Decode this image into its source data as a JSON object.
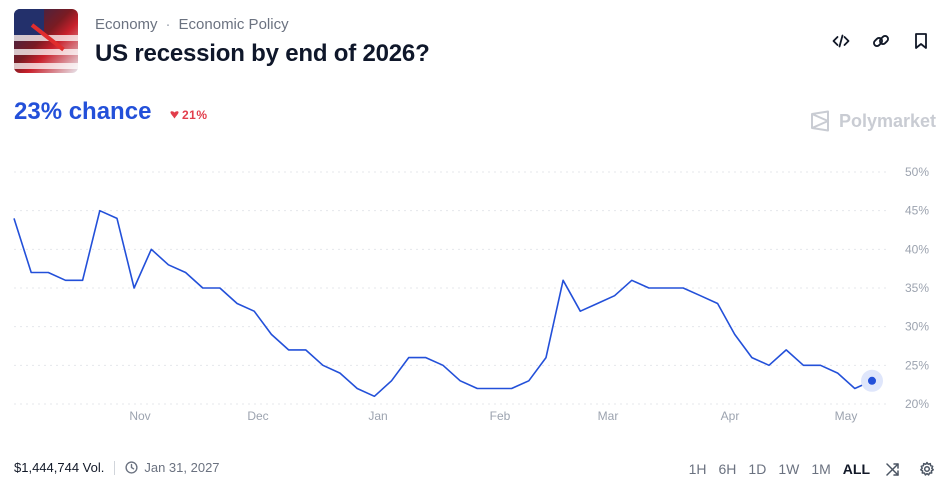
{
  "breadcrumb": {
    "category": "Economy",
    "separator": "·",
    "subcategory": "Economic Policy"
  },
  "title": "US recession by end of 2026?",
  "odds": {
    "chance": "23% chance",
    "change": "21%",
    "change_direction": "down",
    "accent": "#2350d9",
    "down_color": "#e23d4b"
  },
  "brand": "Polymarket",
  "icons": {
    "embed": "code-icon",
    "link": "link-icon",
    "bookmark": "bookmark-icon",
    "clock": "clock-icon",
    "shuffle": "shuffle-icon",
    "settings": "gear-icon",
    "brand": "polymarket-logo-icon"
  },
  "footer": {
    "volume": "$1,444,744 Vol.",
    "end_date": "Jan 31, 2027"
  },
  "ranges": [
    "1H",
    "6H",
    "1D",
    "1W",
    "1M",
    "ALL"
  ],
  "active_range": "ALL",
  "chart_data": {
    "type": "line",
    "color": "#2350d9",
    "ylim": [
      20,
      50
    ],
    "yticks": [
      "50%",
      "45%",
      "40%",
      "35%",
      "30%",
      "25%",
      "20%"
    ],
    "xticks": [
      "Nov",
      "Dec",
      "Jan",
      "Feb",
      "Mar",
      "Apr",
      "May"
    ],
    "grid": true,
    "x": [
      0,
      0.02,
      0.04,
      0.06,
      0.08,
      0.1,
      0.12,
      0.14,
      0.16,
      0.18,
      0.2,
      0.22,
      0.24,
      0.26,
      0.28,
      0.3,
      0.32,
      0.34,
      0.36,
      0.38,
      0.4,
      0.42,
      0.44,
      0.46,
      0.48,
      0.5,
      0.52,
      0.54,
      0.56,
      0.58,
      0.6,
      0.62,
      0.64,
      0.66,
      0.68,
      0.7,
      0.72,
      0.74,
      0.76,
      0.78,
      0.8,
      0.82,
      0.84,
      0.86,
      0.88,
      0.9,
      0.92,
      0.94,
      0.96,
      0.98,
      1.0
    ],
    "values": [
      44,
      37,
      37,
      36,
      36,
      45,
      44,
      35,
      40,
      38,
      37,
      35,
      35,
      33,
      32,
      29,
      27,
      27,
      25,
      24,
      22,
      21,
      23,
      26,
      26,
      25,
      23,
      22,
      22,
      22,
      23,
      26,
      36,
      32,
      33,
      34,
      36,
      35,
      35,
      35,
      34,
      33,
      29,
      26,
      25,
      27,
      25,
      25,
      24,
      22,
      23
    ]
  }
}
